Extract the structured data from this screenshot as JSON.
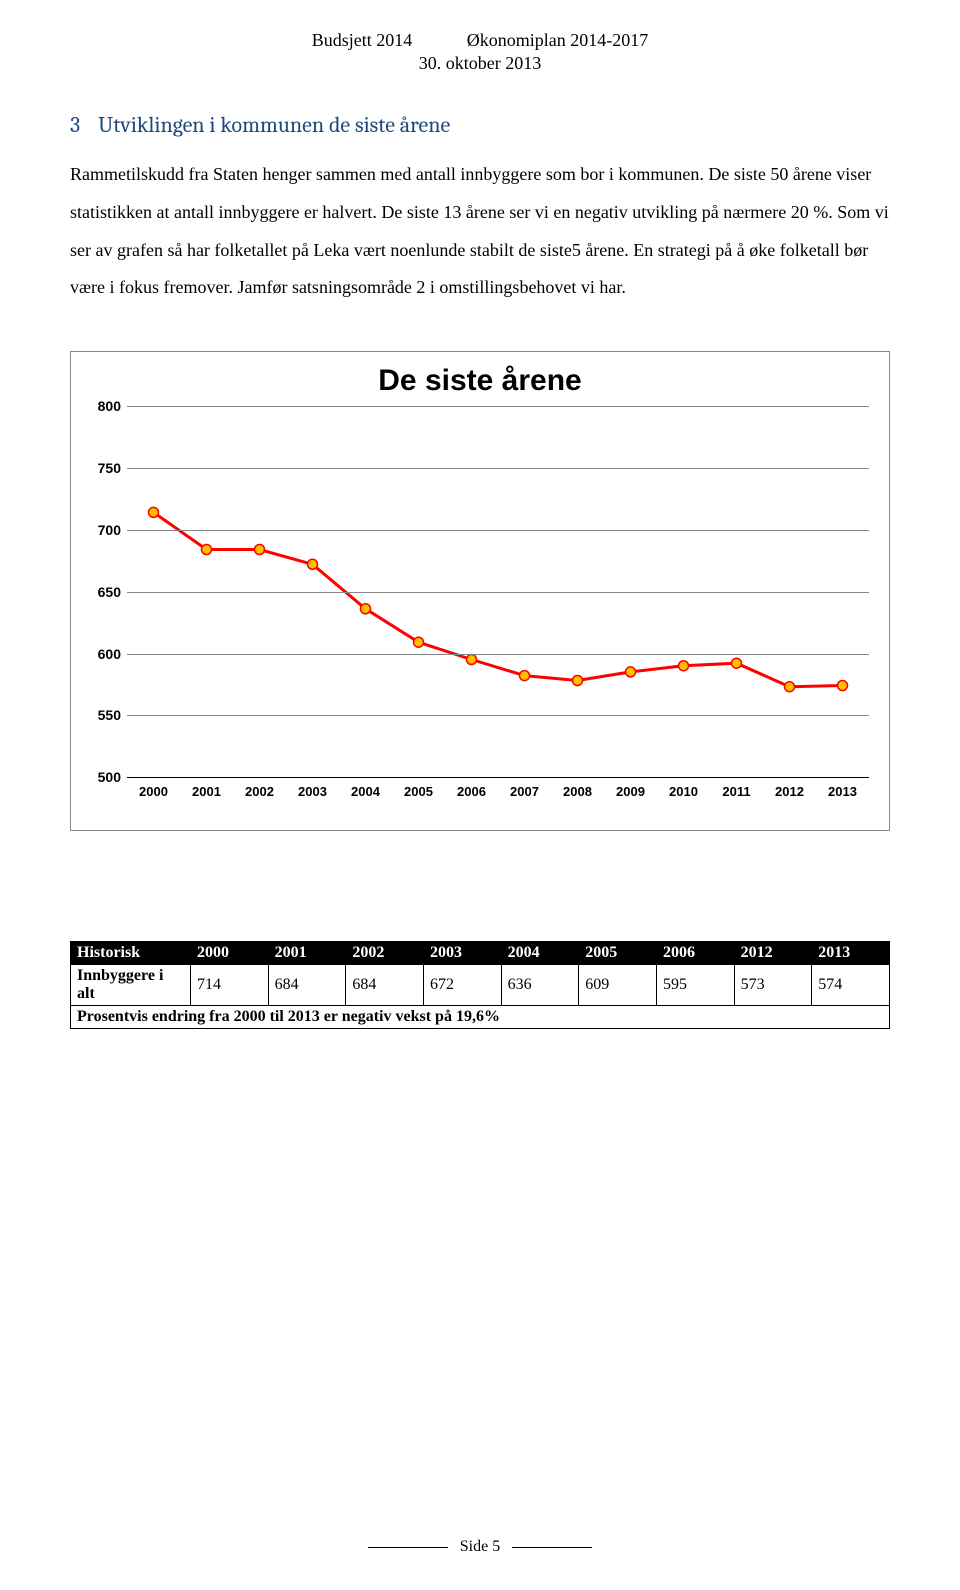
{
  "header": {
    "left": "Budsjett 2014",
    "right": "Økonomiplan 2014-2017",
    "date": "30. oktober 2013"
  },
  "section": {
    "number": "3",
    "title": "Utviklingen i kommunen de siste årene"
  },
  "paragraph": "Rammetilskudd fra Staten henger sammen med antall innbyggere som bor i kommunen. De siste 50 årene viser statistikken at antall innbyggere er halvert. De siste 13 årene ser vi en negativ utvikling på nærmere 20 %. Som vi ser av grafen så har folketallet på Leka vært noenlunde stabilt de siste5 årene. En strategi på å øke folketall bør være i fokus fremover. Jamfør satsningsområde 2 i omstillingsbehovet vi har.",
  "chart": {
    "title": "De siste årene",
    "type": "line",
    "x_labels": [
      "2000",
      "2001",
      "2002",
      "2003",
      "2004",
      "2005",
      "2006",
      "2007",
      "2008",
      "2009",
      "2010",
      "2011",
      "2012",
      "2013"
    ],
    "values": [
      714,
      684,
      684,
      672,
      636,
      609,
      595,
      582,
      578,
      585,
      590,
      592,
      573,
      574
    ],
    "ylim": [
      500,
      800
    ],
    "ytick_step": 50,
    "line_color": "#ff0000",
    "marker_color": "#ffc000",
    "marker_border": "#ff0000",
    "line_width": 3,
    "marker_radius": 5,
    "background_color": "#ffffff",
    "grid_color": "#888888",
    "title_fontsize": 30,
    "tick_fontsize": 14
  },
  "table": {
    "header_label": "Historisk",
    "columns": [
      "2000",
      "2001",
      "2002",
      "2003",
      "2004",
      "2005",
      "2006",
      "2012",
      "2013"
    ],
    "row_label": "Innbyggere i alt",
    "row_values": [
      "714",
      "684",
      "684",
      "672",
      "636",
      "609",
      "595",
      "573",
      "574"
    ],
    "footer": "Prosentvis endring fra 2000 til 2013 er negativ vekst på 19,6%"
  },
  "footer": {
    "page": "Side 5"
  }
}
